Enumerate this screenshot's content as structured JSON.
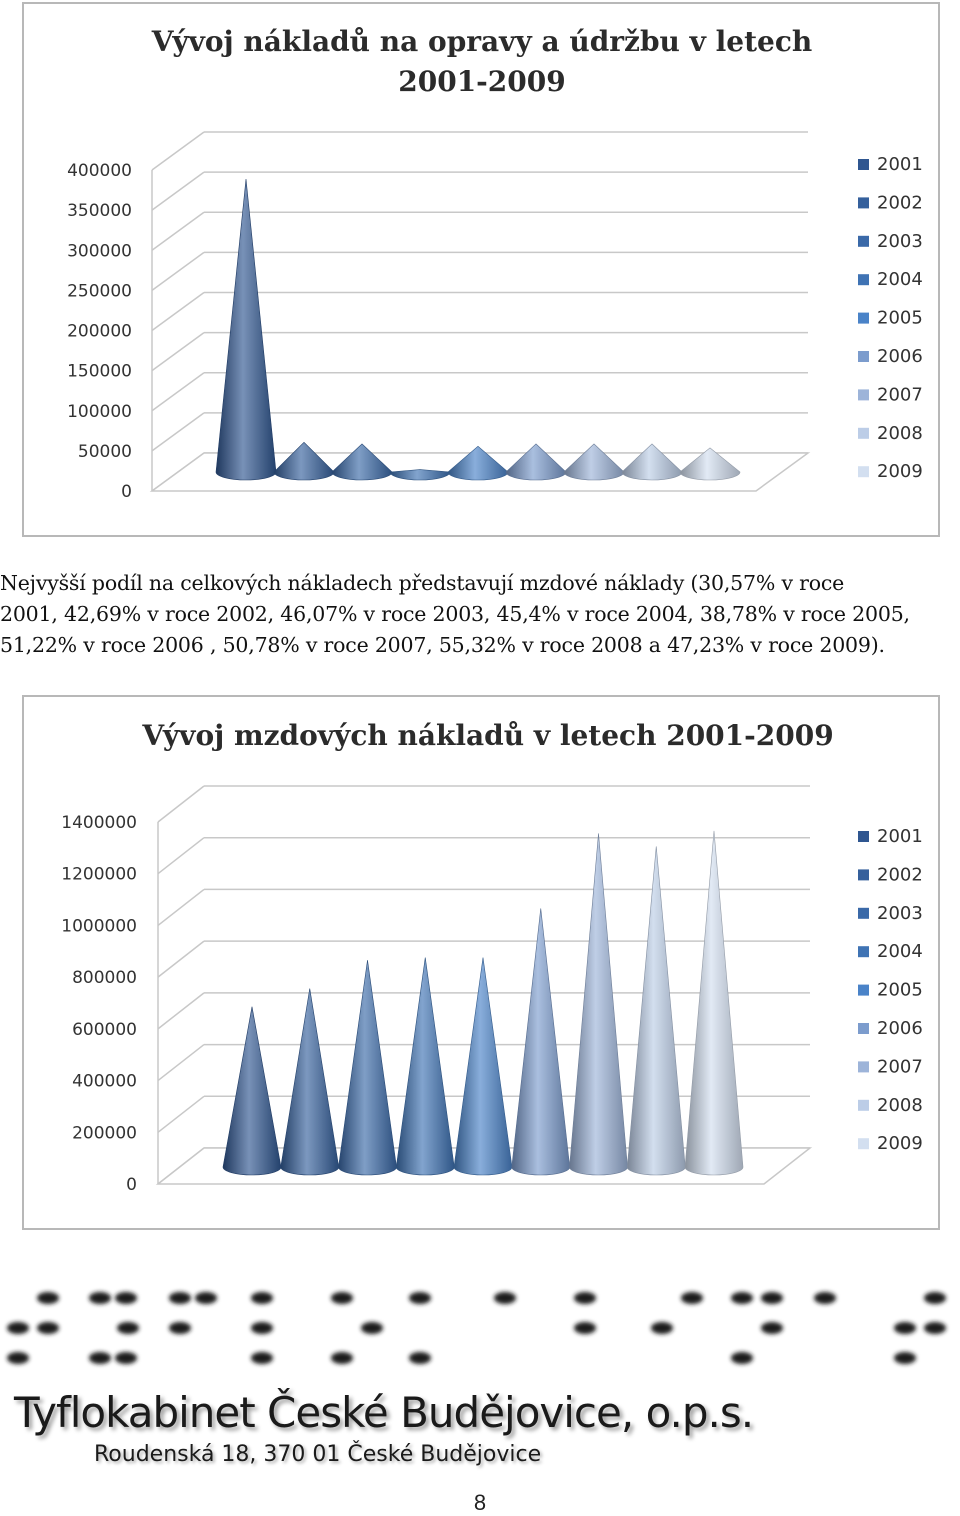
{
  "chart_data": [
    {
      "type": "bar",
      "style": "3d-cone",
      "title": "Vývoj nákladů na opravy a údržbu v letech 2001-2009",
      "title_lines": [
        "Vývoj nákladů na opravy a údržbu v letech",
        "2001-2009"
      ],
      "categories": [
        "2001",
        "2002",
        "2003",
        "2004",
        "2005",
        "2006",
        "2007",
        "2008",
        "2009"
      ],
      "values": [
        365000,
        37000,
        35000,
        3000,
        32000,
        35000,
        35000,
        35000,
        30000
      ],
      "ylim": [
        0,
        400000
      ],
      "yticks": [
        "0",
        "50000",
        "100000",
        "150000",
        "200000",
        "250000",
        "300000",
        "350000",
        "400000"
      ],
      "grid": true,
      "legend": "right",
      "legend_entries": [
        "2001",
        "2002",
        "2003",
        "2004",
        "2005",
        "2006",
        "2007",
        "2008",
        "2009"
      ],
      "colors": [
        "#2f5690",
        "#35609c",
        "#3a69a8",
        "#3f73b4",
        "#4a83c8",
        "#7c9ccd",
        "#9db4d9",
        "#bccde7",
        "#d3dff0"
      ]
    },
    {
      "type": "bar",
      "style": "3d-cone",
      "title": "Vývoj mzdových nákladů v letech 2001-2009",
      "title_lines": [
        "Vývoj mzdových nákladů v letech 2001-2009"
      ],
      "categories": [
        "2001",
        "2002",
        "2003",
        "2004",
        "2005",
        "2006",
        "2007",
        "2008",
        "2009"
      ],
      "values": [
        620000,
        690000,
        800000,
        810000,
        810000,
        1000000,
        1290000,
        1240000,
        1300000
      ],
      "ylim": [
        0,
        1400000
      ],
      "yticks": [
        "0",
        "200000",
        "400000",
        "600000",
        "800000",
        "1000000",
        "1200000",
        "1400000"
      ],
      "grid": true,
      "legend": "right",
      "legend_entries": [
        "2001",
        "2002",
        "2003",
        "2004",
        "2005",
        "2006",
        "2007",
        "2008",
        "2009"
      ],
      "colors": [
        "#2f5690",
        "#35609c",
        "#3a69a8",
        "#3f73b4",
        "#4a83c8",
        "#7c9ccd",
        "#9db4d9",
        "#bccde7",
        "#d3dff0"
      ]
    }
  ],
  "paragraph": {
    "lines": [
      "Nejvyšší podíl na celkových nákladech představují mzdové náklady (30,57% v roce",
      "2001, 42,69% v roce 2002, 46,07% v roce 2003, 45,4% v roce 2004, 38,78% v roce 2005,",
      "51,22% v roce 2006 , 50,78% v roce 2007, 55,32% v roce 2008 a 47,23% v roce 2009)."
    ]
  },
  "logo": {
    "name": "Tyflokabinet České Budějovice, o.p.s.",
    "address": "Roudenská 18, 370 01 České Budějovice"
  },
  "page_number": "8"
}
